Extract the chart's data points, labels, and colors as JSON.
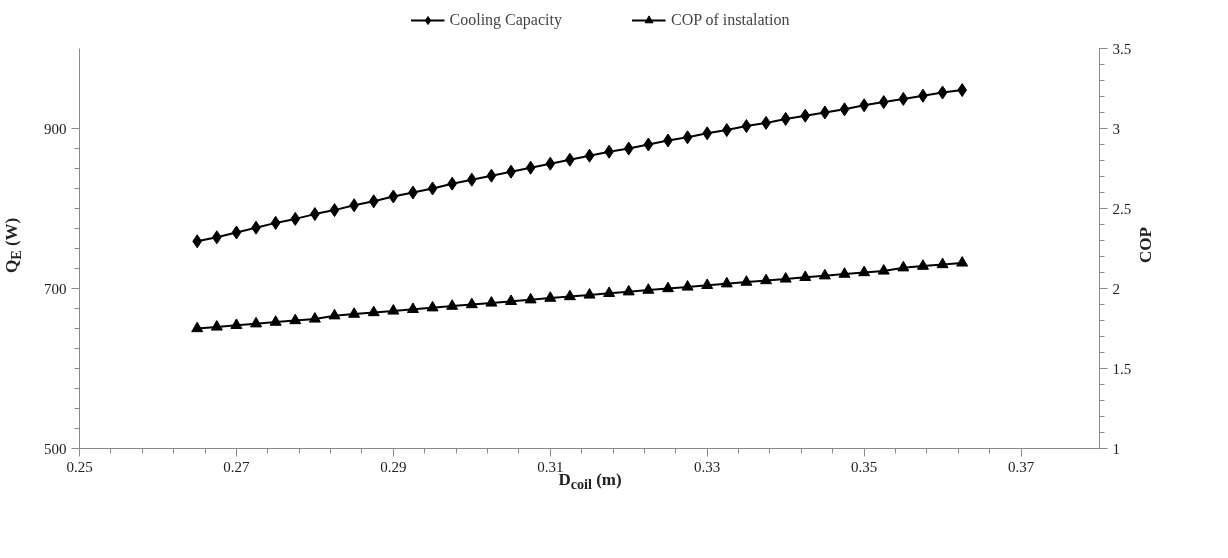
{
  "chart_data": {
    "type": "line",
    "xlabel": "D$_{coil}$ (m)",
    "ylabel": "Q$_{E}$ (W)",
    "y2label": "COP",
    "x": [
      0.265,
      0.2675,
      0.27,
      0.2725,
      0.275,
      0.2775,
      0.28,
      0.2825,
      0.285,
      0.2875,
      0.29,
      0.2925,
      0.295,
      0.2975,
      0.3,
      0.3025,
      0.305,
      0.3075,
      0.31,
      0.3125,
      0.315,
      0.3175,
      0.32,
      0.3225,
      0.325,
      0.3275,
      0.33,
      0.3325,
      0.335,
      0.3375,
      0.34,
      0.3425,
      0.345,
      0.3475,
      0.35,
      0.3525,
      0.355,
      0.3575,
      0.36,
      0.3625
    ],
    "series": [
      {
        "name": "Cooling Capacity",
        "color": "#000000",
        "marker": "diamond",
        "values": [
          759,
          764,
          770,
          776,
          782,
          787,
          793,
          798,
          804,
          809,
          815,
          820,
          825,
          831,
          836,
          841,
          846,
          851,
          856,
          861,
          866,
          871,
          875,
          880,
          885,
          889,
          894,
          898,
          903,
          907,
          912,
          916,
          920,
          924,
          929,
          933,
          937,
          941,
          945,
          948
        ]
      },
      {
        "name": "COP of instalation",
        "color": "#000000",
        "marker": "triangle",
        "axis": "y2",
        "values": [
          1.75,
          1.76,
          1.77,
          1.78,
          1.79,
          1.8,
          1.81,
          1.83,
          1.84,
          1.85,
          1.86,
          1.87,
          1.88,
          1.89,
          1.9,
          1.91,
          1.92,
          1.93,
          1.94,
          1.95,
          1.96,
          1.97,
          1.98,
          1.99,
          2.0,
          2.01,
          2.02,
          2.03,
          2.04,
          2.05,
          2.06,
          2.07,
          2.08,
          2.09,
          2.1,
          2.11,
          2.13,
          2.14,
          2.15,
          2.16
        ]
      }
    ],
    "xlim": [
      0.25,
      0.38
    ],
    "xticks": [
      0.25,
      0.27,
      0.29,
      0.31,
      0.33,
      0.35,
      0.37
    ],
    "ylim": [
      500,
      1000
    ],
    "yticks": [
      500,
      700,
      900
    ],
    "y2lim": [
      1,
      3.5
    ],
    "y2ticks": [
      1,
      1.5,
      2,
      2.5,
      3,
      3.5
    ],
    "grid": false,
    "legend": "top",
    "line_style": "solid"
  }
}
